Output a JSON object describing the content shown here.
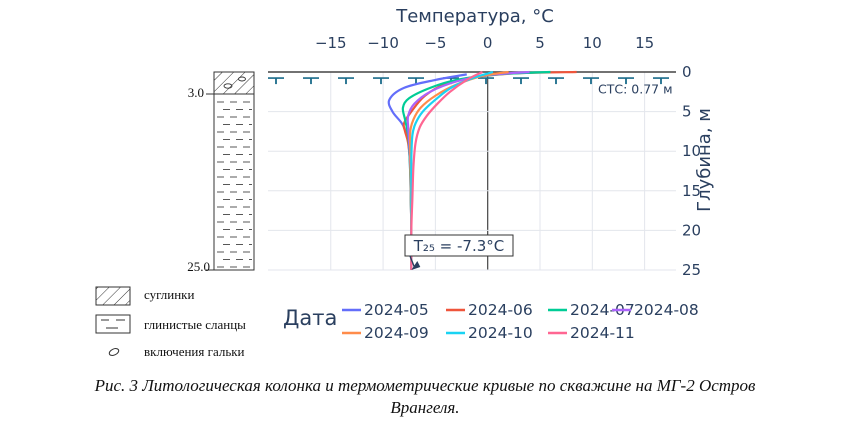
{
  "chart_data": {
    "type": "line",
    "title": "Температура, °C",
    "xlabel": "Температура, °C",
    "ylabel": "Глубина, м",
    "xlim": [
      -21,
      18
    ],
    "ylim": [
      0,
      25
    ],
    "y_reversed": true,
    "x_ticks": [
      "−15",
      "−10",
      "−5",
      "0",
      "5",
      "10",
      "15"
    ],
    "x_tick_values": [
      -15,
      -10,
      -5,
      0,
      5,
      10,
      15
    ],
    "y_ticks": [
      "0",
      "5",
      "10",
      "15",
      "20",
      "25"
    ],
    "y_tick_values": [
      0,
      5,
      10,
      15,
      20,
      25
    ],
    "x_axis_side": "top",
    "y_axis_side": "right",
    "grid": true,
    "legend": {
      "title": "Дата",
      "placement": "bottom"
    },
    "series": [
      {
        "name": "2024-05",
        "color": "#636efa",
        "points": [
          [
            -2,
            0.3
          ],
          [
            -5,
            1
          ],
          [
            -8,
            2
          ],
          [
            -9.4,
            3.5
          ],
          [
            -9.1,
            5
          ],
          [
            -8.2,
            6.5
          ],
          [
            -7.7,
            8
          ],
          [
            -7.5,
            10
          ],
          [
            -7.4,
            13
          ],
          [
            -7.35,
            16
          ],
          [
            -7.3,
            20
          ],
          [
            -7.3,
            25
          ]
        ]
      },
      {
        "name": "2024-06",
        "color": "#ef553b",
        "points": [
          [
            8.5,
            0
          ],
          [
            3,
            0.15
          ],
          [
            -1,
            0.6
          ],
          [
            -4,
            1.5
          ],
          [
            -6,
            3
          ],
          [
            -7.3,
            5
          ],
          [
            -8,
            6.5
          ],
          [
            -7.9,
            7.5
          ],
          [
            -7.6,
            9
          ],
          [
            -7.4,
            12
          ],
          [
            -7.35,
            16
          ],
          [
            -7.3,
            20
          ],
          [
            -7.3,
            25
          ]
        ]
      },
      {
        "name": "2024-07",
        "color": "#00cc96",
        "points": [
          [
            6,
            0
          ],
          [
            1,
            0.3
          ],
          [
            -3,
            1
          ],
          [
            -5.5,
            2
          ],
          [
            -7.5,
            3.3
          ],
          [
            -8.1,
            4.5
          ],
          [
            -7.9,
            6
          ],
          [
            -7.6,
            8
          ],
          [
            -7.45,
            11
          ],
          [
            -7.35,
            16
          ],
          [
            -7.3,
            20
          ],
          [
            -7.3,
            25
          ]
        ]
      },
      {
        "name": "2024-08",
        "color": "#ab63fa",
        "points": [
          [
            4,
            0
          ],
          [
            0,
            0.4
          ],
          [
            -3,
            1.2
          ],
          [
            -5.5,
            2.5
          ],
          [
            -7,
            4
          ],
          [
            -7.6,
            5.5
          ],
          [
            -7.6,
            7
          ],
          [
            -7.45,
            10
          ],
          [
            -7.35,
            14
          ],
          [
            -7.3,
            20
          ],
          [
            -7.3,
            25
          ]
        ]
      },
      {
        "name": "2024-09",
        "color": "#ff8c4a",
        "points": [
          [
            2,
            0
          ],
          [
            -0.5,
            0.5
          ],
          [
            -3,
            1.6
          ],
          [
            -5,
            3
          ],
          [
            -6.4,
            4.5
          ],
          [
            -7.1,
            6
          ],
          [
            -7.4,
            7.5
          ],
          [
            -7.4,
            10
          ],
          [
            -7.35,
            14
          ],
          [
            -7.3,
            20
          ],
          [
            -7.3,
            25
          ]
        ]
      },
      {
        "name": "2024-10",
        "color": "#19d3f3",
        "points": [
          [
            0.5,
            0
          ],
          [
            -1.5,
            0.8
          ],
          [
            -3.5,
            2
          ],
          [
            -5,
            3.5
          ],
          [
            -6.2,
            5
          ],
          [
            -6.9,
            6.5
          ],
          [
            -7.2,
            8
          ],
          [
            -7.3,
            11
          ],
          [
            -7.3,
            15
          ],
          [
            -7.3,
            20
          ],
          [
            -7.3,
            25
          ]
        ]
      },
      {
        "name": "2024-11",
        "color": "#ff6692",
        "points": [
          [
            -0.5,
            0
          ],
          [
            -2,
            1
          ],
          [
            -3.6,
            2.5
          ],
          [
            -4.8,
            4
          ],
          [
            -5.8,
            5.5
          ],
          [
            -6.5,
            7
          ],
          [
            -6.9,
            9
          ],
          [
            -7.1,
            12
          ],
          [
            -7.2,
            16
          ],
          [
            -7.3,
            20
          ],
          [
            -7.3,
            25
          ]
        ]
      }
    ],
    "annotations": {
      "stc_label": "СТС: 0.77 м",
      "stc_depth": 0.77,
      "t25_label": "T₂₅ = -7.3°C",
      "t25_point": [
        -7.3,
        25
      ]
    }
  },
  "lithology": {
    "depth_labels": [
      {
        "label": "3.0",
        "depth": 3.0
      },
      {
        "label": "25.0",
        "depth": 25.0
      }
    ],
    "legend": [
      {
        "name": "suglinki",
        "label": "суглинки"
      },
      {
        "name": "shales",
        "label": "глинистые сланцы"
      },
      {
        "name": "pebbles",
        "label": "включения гальки"
      }
    ]
  },
  "caption": {
    "line1": "Рис. 3 Литологическая колонка и термометрические кривые по скважине на МГ-2 Остров",
    "line2": "Врангеля."
  }
}
